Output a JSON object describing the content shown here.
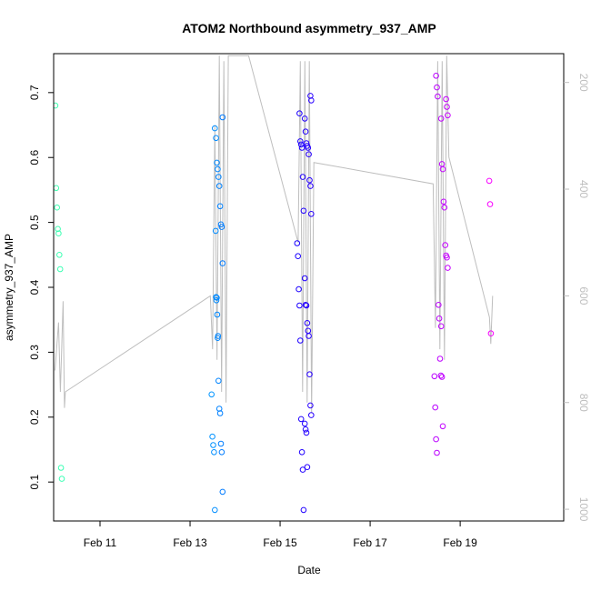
{
  "chart_data": {
    "type": "scatter",
    "title": "ATOM2 Northbound asymmetry_937_AMP",
    "xlabel": "Date",
    "ylabel": "asymmetry_937_AMP",
    "x_ticks": [
      "Feb 11",
      "Feb 13",
      "Feb 15",
      "Feb 17",
      "Feb 19"
    ],
    "x_tick_days": [
      11,
      13,
      15,
      17,
      19
    ],
    "xlim": [
      9.97,
      21.3
    ],
    "y_ticks": [
      "0.1",
      "0.2",
      "0.3",
      "0.4",
      "0.5",
      "0.6",
      "0.7"
    ],
    "ylim": [
      0.04,
      0.76
    ],
    "y2_ticks": [
      "200",
      "400",
      "600",
      "800",
      "1000"
    ],
    "y2lim": [
      1022,
      146
    ],
    "grid": false,
    "point_color_gradient": [
      "#40ffb0",
      "#00ffff",
      "#0000ff",
      "#8000ff",
      "#ff00ff"
    ],
    "secondary_line_color": "#bebebe",
    "series": [
      {
        "x": 10.08,
        "y": [
          0.68,
          0.553,
          0.523,
          0.49,
          0.483,
          0.45,
          0.428,
          0.122,
          0.105
        ]
      },
      {
        "x": 13.55,
        "y": [
          0.645,
          0.487,
          0.38,
          0.358,
          0.325,
          0.235,
          0.17,
          0.157,
          0.146,
          0.057
        ]
      },
      {
        "x": 13.65,
        "y": [
          0.662,
          0.63,
          0.592,
          0.582,
          0.57,
          0.556,
          0.525,
          0.497,
          0.493,
          0.437,
          0.385,
          0.384,
          0.322,
          0.256,
          0.213,
          0.206,
          0.159,
          0.146,
          0.085
        ]
      },
      {
        "x": 15.45,
        "y": [
          0.668,
          0.625,
          0.62,
          0.615,
          0.57,
          0.518,
          0.468,
          0.448,
          0.397,
          0.372,
          0.318,
          0.197,
          0.146,
          0.119,
          0.057
        ]
      },
      {
        "x": 15.62,
        "y": [
          0.695,
          0.688,
          0.66,
          0.64,
          0.622,
          0.618,
          0.615,
          0.605,
          0.565,
          0.556,
          0.513,
          0.414,
          0.373,
          0.372,
          0.345,
          0.333,
          0.325,
          0.266,
          0.218,
          0.203,
          0.19,
          0.181,
          0.176,
          0.123
        ]
      },
      {
        "x": 18.5,
        "y": [
          0.726,
          0.708,
          0.694,
          0.373,
          0.352,
          0.29,
          0.264,
          0.263,
          0.215,
          0.166,
          0.145
        ]
      },
      {
        "x": 18.65,
        "y": [
          0.69,
          0.678,
          0.665,
          0.66,
          0.59,
          0.582,
          0.532,
          0.523,
          0.465,
          0.449,
          0.446,
          0.43,
          0.34,
          0.262,
          0.186
        ]
      },
      {
        "x": 19.7,
        "y": [
          0.564,
          0.528,
          0.329
        ]
      }
    ],
    "secondary_series": {
      "axis": "right",
      "x": [
        10.0,
        10.08,
        10.12,
        10.18,
        10.21,
        10.23,
        13.45,
        13.5,
        13.55,
        13.6,
        13.65,
        13.7,
        13.75,
        13.8,
        13.85,
        14.3,
        15.4,
        15.45,
        15.5,
        15.55,
        15.6,
        15.65,
        15.7,
        15.75,
        18.4,
        18.45,
        18.5,
        18.55,
        18.6,
        18.65,
        18.7,
        18.75,
        19.65,
        19.68,
        19.72
      ],
      "y": [
        740,
        650,
        780,
        610,
        810,
        780,
        600,
        700,
        280,
        720,
        150,
        780,
        160,
        800,
        150,
        150,
        500,
        160,
        780,
        160,
        800,
        160,
        820,
        350,
        390,
        660,
        160,
        700,
        160,
        720,
        150,
        340,
        640,
        690,
        600
      ]
    }
  }
}
